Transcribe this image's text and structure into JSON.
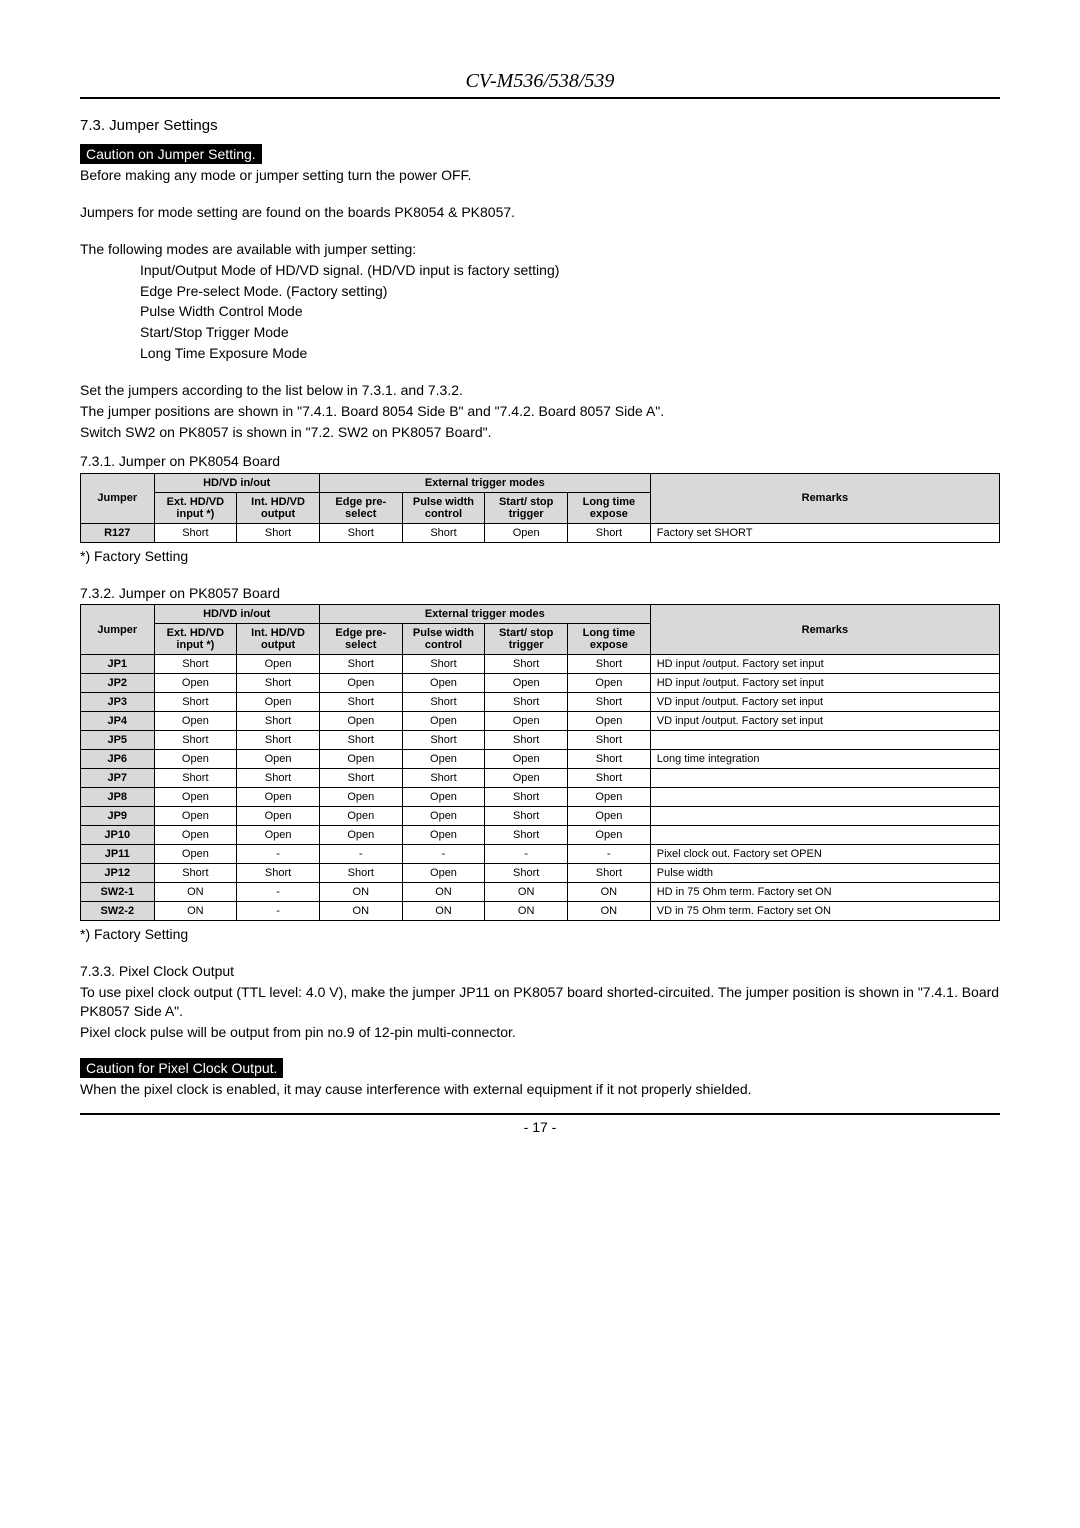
{
  "header": {
    "title": "CV-M536/538/539"
  },
  "section_73": {
    "title": "7.3. Jumper Settings",
    "caution": "Caution on Jumper Setting.",
    "p1": "Before making any mode or jumper setting turn the power OFF.",
    "p2": "Jumpers for mode setting are found on the boards PK8054 & PK8057.",
    "p3": "The following modes are available with jumper setting:",
    "mode1": "Input/Output Mode of HD/VD signal. (HD/VD input is factory setting)",
    "mode2": "Edge Pre-select Mode. (Factory setting)",
    "mode3": "Pulse Width Control Mode",
    "mode4": "Start/Stop Trigger Mode",
    "mode5": "Long Time Exposure Mode",
    "p4": "Set the jumpers according to the list below in 7.3.1. and 7.3.2.",
    "p5": "The jumper positions are shown in \"7.4.1. Board 8054 Side B\" and \"7.4.2. Board 8057 Side A\".",
    "p6": "Switch SW2 on PK8057 is shown in \"7.2. SW2 on PK8057 Board\"."
  },
  "section_731": {
    "title": "7.3.1. Jumper on PK8054 Board",
    "footnote": "*) Factory Setting"
  },
  "section_732": {
    "title": "7.3.2. Jumper on PK8057 Board",
    "footnote": "*) Factory Setting"
  },
  "section_733": {
    "title": "7.3.3. Pixel Clock Output",
    "p1": "To use pixel clock output (TTL level: 4.0 V), make the jumper JP11 on PK8057 board shorted-circuited. The jumper position is shown in \"7.4.1. Board PK8057 Side A\".",
    "p2": "Pixel clock pulse will be output from pin no.9 of 12-pin multi-connector.",
    "caution": "Caution for Pixel Clock Output.",
    "p3": "When the pixel clock is enabled, it may cause interference with external equipment if it not properly shielded."
  },
  "table_headers": {
    "jumper": "Jumper",
    "hdvd": "HD/VD  in/out",
    "ext_hdvd": "Ext. HD/VD input *)",
    "int_hdvd": "Int. HD/VD output",
    "ext_trigger": "External trigger modes",
    "edge": "Edge pre-select",
    "pulse": "Pulse width control",
    "startstop": "Start/ stop trigger",
    "longtime": "Long time expose",
    "remarks": "Remarks"
  },
  "table1": {
    "rows": [
      {
        "j": "R127",
        "c": [
          "Short",
          "Short",
          "Short",
          "Short",
          "Open",
          "Short"
        ],
        "r": "Factory set SHORT"
      }
    ]
  },
  "table2": {
    "rows": [
      {
        "j": "JP1",
        "c": [
          "Short",
          "Open",
          "Short",
          "Short",
          "Short",
          "Short"
        ],
        "r": "HD input /output. Factory set input"
      },
      {
        "j": "JP2",
        "c": [
          "Open",
          "Short",
          "Open",
          "Open",
          "Open",
          "Open"
        ],
        "r": "HD input /output. Factory set input"
      },
      {
        "j": "JP3",
        "c": [
          "Short",
          "Open",
          "Short",
          "Short",
          "Short",
          "Short"
        ],
        "r": "VD input /output. Factory set input"
      },
      {
        "j": "JP4",
        "c": [
          "Open",
          "Short",
          "Open",
          "Open",
          "Open",
          "Open"
        ],
        "r": "VD input /output. Factory set input"
      },
      {
        "j": "JP5",
        "c": [
          "Short",
          "Short",
          "Short",
          "Short",
          "Short",
          "Short"
        ],
        "r": ""
      },
      {
        "j": "JP6",
        "c": [
          "Open",
          "Open",
          "Open",
          "Open",
          "Open",
          "Short"
        ],
        "r": "Long time integration"
      },
      {
        "j": "JP7",
        "c": [
          "Short",
          "Short",
          "Short",
          "Short",
          "Open",
          "Short"
        ],
        "r": ""
      },
      {
        "j": "JP8",
        "c": [
          "Open",
          "Open",
          "Open",
          "Open",
          "Short",
          "Open"
        ],
        "r": ""
      },
      {
        "j": "JP9",
        "c": [
          "Open",
          "Open",
          "Open",
          "Open",
          "Short",
          "Open"
        ],
        "r": ""
      },
      {
        "j": "JP10",
        "c": [
          "Open",
          "Open",
          "Open",
          "Open",
          "Short",
          "Open"
        ],
        "r": ""
      },
      {
        "j": "JP11",
        "c": [
          "Open",
          "-",
          "-",
          "-",
          "-",
          "-"
        ],
        "r": "Pixel clock out. Factory set OPEN"
      },
      {
        "j": "JP12",
        "c": [
          "Short",
          "Short",
          "Short",
          "Open",
          "Short",
          "Short"
        ],
        "r": "Pulse width"
      },
      {
        "j": "SW2-1",
        "c": [
          "ON",
          "-",
          "ON",
          "ON",
          "ON",
          "ON"
        ],
        "r": "HD in 75 Ohm term. Factory set ON"
      },
      {
        "j": "SW2-2",
        "c": [
          "ON",
          "-",
          "ON",
          "ON",
          "ON",
          "ON"
        ],
        "r": "VD in 75 Ohm term. Factory set ON"
      }
    ]
  },
  "col_widths": {
    "jumper": "8%",
    "c1": "9%",
    "c2": "9%",
    "c3": "9%",
    "c4": "9%",
    "c5": "9%",
    "c6": "9%",
    "remarks": "38%"
  },
  "page_number": "- 17 -"
}
